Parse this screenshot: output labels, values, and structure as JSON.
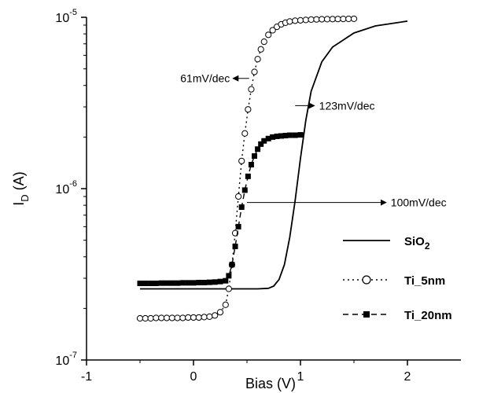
{
  "chart_data": {
    "type": "line",
    "title": "",
    "xlabel": "Bias (V)",
    "ylabel_main": "I",
    "ylabel_sub": "D",
    "ylabel_rest": " (A)",
    "y_scale": "log",
    "xlim": [
      -1,
      2.5
    ],
    "ylim": [
      1e-07,
      1e-05
    ],
    "x_ticks": [
      {
        "value": -1,
        "label": "-1"
      },
      {
        "value": 0,
        "label": "0"
      },
      {
        "value": 1,
        "label": "1"
      },
      {
        "value": 2,
        "label": "2"
      }
    ],
    "y_ticks": [
      {
        "value": 1e-07,
        "base": "10",
        "exp": "-7"
      },
      {
        "value": 1e-06,
        "base": "10",
        "exp": "-6"
      },
      {
        "value": 1e-05,
        "base": "10",
        "exp": "-5"
      }
    ],
    "grid": false,
    "legend_position": "right",
    "series": [
      {
        "name": "SiO",
        "name_sub": "2",
        "style": "solid",
        "marker": "none",
        "color": "#000000",
        "x": [
          -0.5,
          -0.3,
          0,
          0.3,
          0.6,
          0.7,
          0.75,
          0.8,
          0.85,
          0.9,
          0.95,
          1.0,
          1.05,
          1.1,
          1.2,
          1.3,
          1.5,
          1.7,
          2.0
        ],
        "y": [
          2.6e-07,
          2.6e-07,
          2.6e-07,
          2.6e-07,
          2.6e-07,
          2.62e-07,
          2.7e-07,
          2.95e-07,
          3.6e-07,
          5.2e-07,
          8.5e-07,
          1.5e-06,
          2.5e-06,
          3.7e-06,
          5.5e-06,
          6.7e-06,
          8.1e-06,
          8.9e-06,
          9.5e-06
        ]
      },
      {
        "name": "Ti_5nm",
        "style": "dotted",
        "marker": "open-circle",
        "color": "#000000",
        "x": [
          -0.5,
          -0.45,
          -0.4,
          -0.35,
          -0.3,
          -0.25,
          -0.2,
          -0.15,
          -0.1,
          -0.05,
          0,
          0.05,
          0.1,
          0.15,
          0.2,
          0.25,
          0.3,
          0.33,
          0.36,
          0.39,
          0.42,
          0.45,
          0.48,
          0.51,
          0.54,
          0.57,
          0.6,
          0.63,
          0.66,
          0.7,
          0.74,
          0.78,
          0.82,
          0.86,
          0.9,
          0.95,
          1.0,
          1.05,
          1.1,
          1.15,
          1.2,
          1.25,
          1.3,
          1.35,
          1.4,
          1.45,
          1.5
        ],
        "y": [
          1.75e-07,
          1.75e-07,
          1.75e-07,
          1.76e-07,
          1.76e-07,
          1.76e-07,
          1.76e-07,
          1.76e-07,
          1.76e-07,
          1.77e-07,
          1.77e-07,
          1.77e-07,
          1.78e-07,
          1.79e-07,
          1.82e-07,
          1.9e-07,
          2.1e-07,
          2.6e-07,
          3.6e-07,
          5.5e-07,
          9e-07,
          1.45e-06,
          2.1e-06,
          2.9e-06,
          3.8e-06,
          4.8e-06,
          5.7e-06,
          6.5e-06,
          7.2e-06,
          7.9e-06,
          8.4e-06,
          8.8e-06,
          9.1e-06,
          9.3e-06,
          9.45e-06,
          9.55e-06,
          9.6e-06,
          9.65e-06,
          9.7e-06,
          9.72e-06,
          9.74e-06,
          9.75e-06,
          9.76e-06,
          9.77e-06,
          9.78e-06,
          9.79e-06,
          9.8e-06
        ]
      },
      {
        "name": "Ti_20nm",
        "style": "dashed",
        "marker": "filled-square",
        "color": "#000000",
        "x": [
          -0.5,
          -0.45,
          -0.4,
          -0.35,
          -0.3,
          -0.25,
          -0.2,
          -0.15,
          -0.1,
          -0.05,
          0,
          0.05,
          0.1,
          0.15,
          0.2,
          0.25,
          0.3,
          0.33,
          0.36,
          0.39,
          0.42,
          0.45,
          0.48,
          0.51,
          0.54,
          0.57,
          0.6,
          0.63,
          0.66,
          0.7,
          0.74,
          0.78,
          0.82,
          0.86,
          0.9,
          0.95,
          1.0
        ],
        "y": [
          2.8e-07,
          2.8e-07,
          2.8e-07,
          2.8e-07,
          2.81e-07,
          2.81e-07,
          2.81e-07,
          2.81e-07,
          2.82e-07,
          2.82e-07,
          2.82e-07,
          2.83e-07,
          2.83e-07,
          2.84e-07,
          2.85e-07,
          2.87e-07,
          2.9e-07,
          3.1e-07,
          3.6e-07,
          4.6e-07,
          6e-07,
          7.8e-07,
          9.8e-07,
          1.18e-06,
          1.38e-06,
          1.55e-06,
          1.7e-06,
          1.82e-06,
          1.9e-06,
          1.96e-06,
          2e-06,
          2.02e-06,
          2.03e-06,
          2.04e-06,
          2.05e-06,
          2.05e-06,
          2.06e-06
        ]
      }
    ],
    "annotations": [
      {
        "text": "61mV/dec",
        "x": 0.17,
        "y": 4.4e-06,
        "arrow_from_x": 0.52,
        "arrow_to_x": 0.37,
        "anchor": "end"
      },
      {
        "text": "123mV/dec",
        "x": 1.15,
        "y": 3.05e-06,
        "arrow_from_x": 0.95,
        "arrow_to_x": 1.13,
        "anchor": "start"
      },
      {
        "text": "100mV/dec",
        "x": 1.82,
        "y": 8.3e-07,
        "arrow_from_x": 0.5,
        "arrow_to_x": 1.8,
        "anchor": "start"
      }
    ]
  }
}
